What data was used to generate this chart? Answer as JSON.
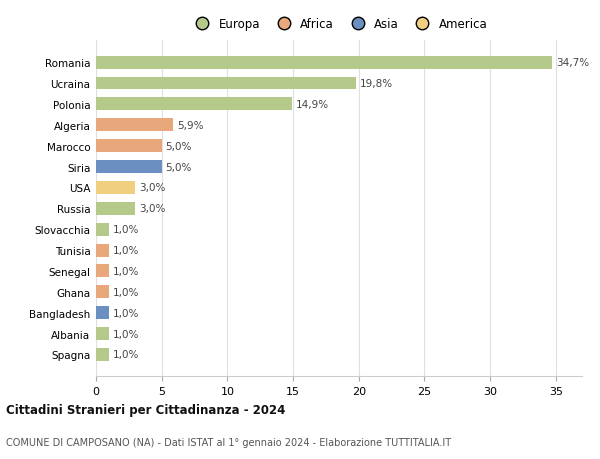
{
  "categories": [
    "Spagna",
    "Albania",
    "Bangladesh",
    "Ghana",
    "Senegal",
    "Tunisia",
    "Slovacchia",
    "Russia",
    "USA",
    "Siria",
    "Marocco",
    "Algeria",
    "Polonia",
    "Ucraina",
    "Romania"
  ],
  "values": [
    1.0,
    1.0,
    1.0,
    1.0,
    1.0,
    1.0,
    1.0,
    3.0,
    3.0,
    5.0,
    5.0,
    5.9,
    14.9,
    19.8,
    34.7
  ],
  "colors": [
    "#b5c98a",
    "#b5c98a",
    "#6b8fc0",
    "#e8a87c",
    "#e8a87c",
    "#e8a87c",
    "#b5c98a",
    "#b5c98a",
    "#f0d080",
    "#6b8fc0",
    "#e8a87c",
    "#e8a87c",
    "#b5c98a",
    "#b5c98a",
    "#b5c98a"
  ],
  "labels": [
    "1,0%",
    "1,0%",
    "1,0%",
    "1,0%",
    "1,0%",
    "1,0%",
    "1,0%",
    "3,0%",
    "3,0%",
    "5,0%",
    "5,0%",
    "5,9%",
    "14,9%",
    "19,8%",
    "34,7%"
  ],
  "legend": [
    {
      "label": "Europa",
      "color": "#b5c98a"
    },
    {
      "label": "Africa",
      "color": "#e8a87c"
    },
    {
      "label": "Asia",
      "color": "#6b8fc0"
    },
    {
      "label": "America",
      "color": "#f0d080"
    }
  ],
  "title": "Cittadini Stranieri per Cittadinanza - 2024",
  "subtitle": "COMUNE DI CAMPOSANO (NA) - Dati ISTAT al 1° gennaio 2024 - Elaborazione TUTTITALIA.IT",
  "xlim": [
    0,
    37
  ],
  "background_color": "#ffffff",
  "grid_color": "#e0e0e0"
}
